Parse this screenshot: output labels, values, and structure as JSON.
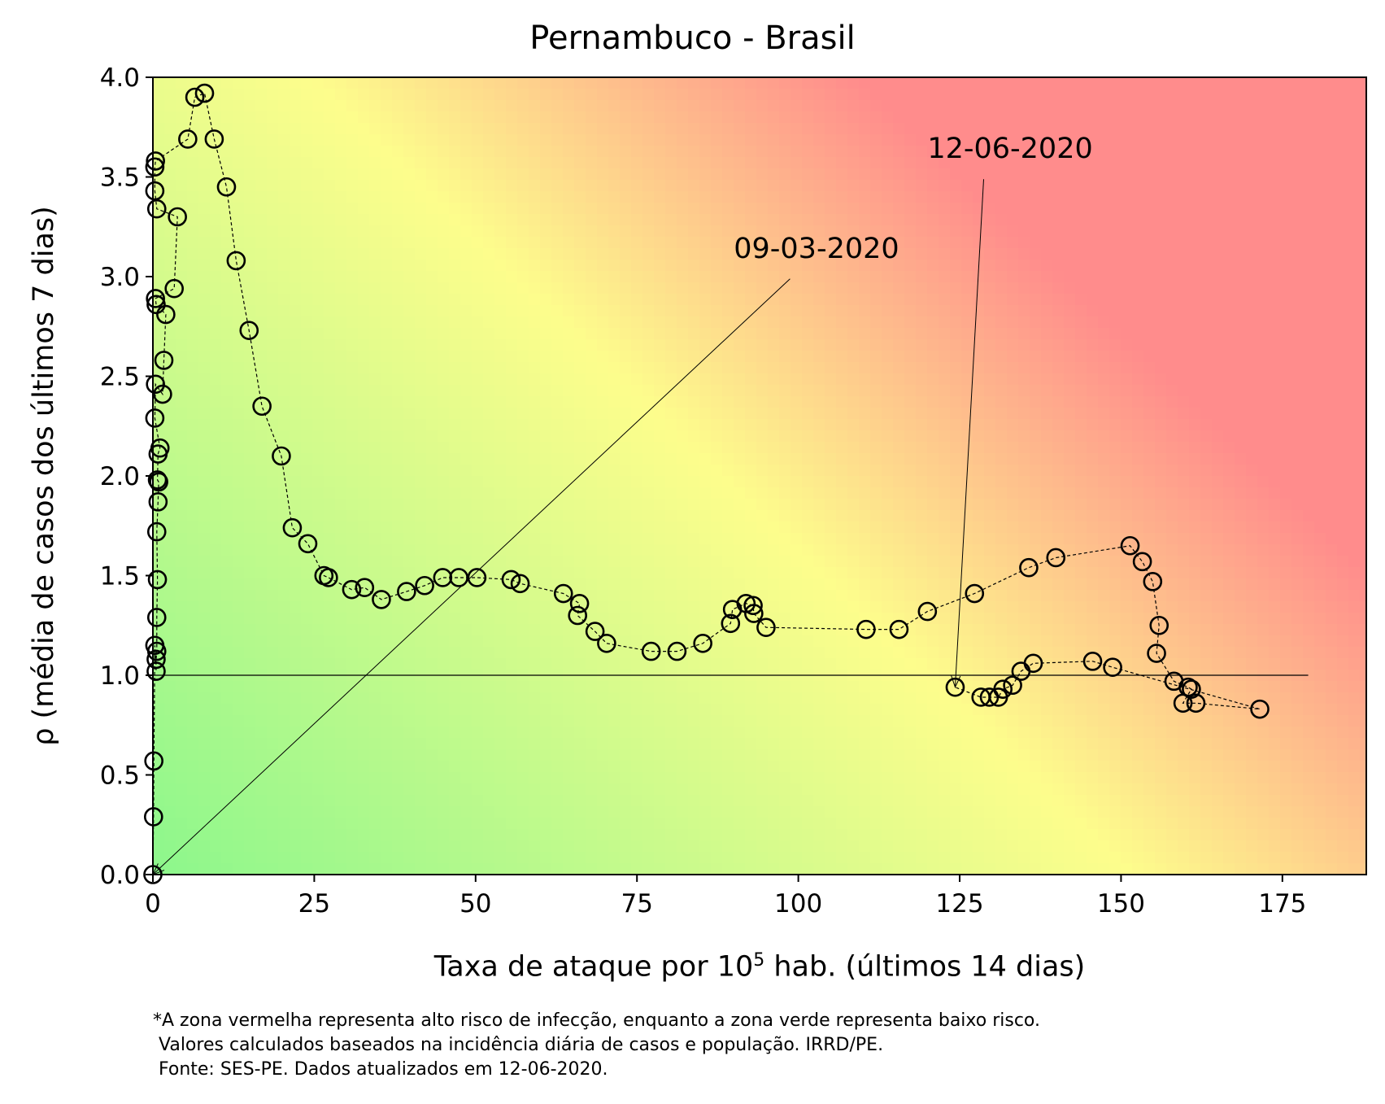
{
  "chart_data": {
    "type": "scatter",
    "title": "Pernambuco - Brasil",
    "xlabel": {
      "prefix": "Taxa de ataque por 10",
      "superscript": "5",
      "suffix": " hab. (últimos 14 dias)"
    },
    "ylabel": "ρ (média de casos dos últimos 7 dias)",
    "xlim": [
      0,
      188
    ],
    "ylim": [
      0,
      4.0
    ],
    "xticks": [
      0,
      25,
      50,
      75,
      100,
      125,
      150,
      175
    ],
    "yticks": [
      0.0,
      0.5,
      1.0,
      1.5,
      2.0,
      2.5,
      3.0,
      3.5,
      4.0
    ],
    "reference_line": {
      "y": 1.0,
      "x_from": 0,
      "x_to": 179
    },
    "background": "risk gradient: green (low risk, bottom-left) to yellow to red (high risk, top-right)",
    "colors": {
      "green": "#8cf78c",
      "yellow": "#fdfd8c",
      "red": "#ff8c8c",
      "marker_edge": "#000000"
    },
    "series": [
      {
        "marker": "open-circle",
        "line": "dashed",
        "points": [
          [
            0.0,
            0.0
          ],
          [
            0.1,
            0.29
          ],
          [
            0.15,
            0.57
          ],
          [
            0.3,
            1.15
          ],
          [
            0.5,
            1.02
          ],
          [
            0.5,
            1.08
          ],
          [
            0.6,
            1.12
          ],
          [
            0.6,
            1.29
          ],
          [
            0.7,
            1.48
          ],
          [
            0.6,
            1.72
          ],
          [
            0.8,
            1.87
          ],
          [
            0.9,
            1.97
          ],
          [
            0.7,
            1.98
          ],
          [
            0.8,
            2.11
          ],
          [
            1.1,
            2.14
          ],
          [
            0.3,
            2.29
          ],
          [
            0.4,
            2.46
          ],
          [
            1.5,
            2.41
          ],
          [
            1.7,
            2.58
          ],
          [
            2.0,
            2.81
          ],
          [
            0.5,
            2.86
          ],
          [
            0.4,
            2.89
          ],
          [
            3.3,
            2.94
          ],
          [
            3.8,
            3.3
          ],
          [
            0.6,
            3.34
          ],
          [
            0.3,
            3.43
          ],
          [
            0.3,
            3.55
          ],
          [
            0.4,
            3.58
          ],
          [
            5.4,
            3.69
          ],
          [
            6.5,
            3.9
          ],
          [
            8.0,
            3.92
          ],
          [
            9.5,
            3.69
          ],
          [
            11.4,
            3.45
          ],
          [
            12.9,
            3.08
          ],
          [
            14.9,
            2.73
          ],
          [
            16.9,
            2.35
          ],
          [
            19.9,
            2.1
          ],
          [
            21.6,
            1.74
          ],
          [
            24.0,
            1.66
          ],
          [
            26.5,
            1.5
          ],
          [
            27.2,
            1.49
          ],
          [
            30.8,
            1.43
          ],
          [
            32.8,
            1.44
          ],
          [
            35.4,
            1.38
          ],
          [
            39.3,
            1.42
          ],
          [
            42.1,
            1.45
          ],
          [
            44.9,
            1.49
          ],
          [
            47.4,
            1.49
          ],
          [
            50.2,
            1.49
          ],
          [
            55.5,
            1.48
          ],
          [
            56.9,
            1.46
          ],
          [
            63.6,
            1.41
          ],
          [
            66.1,
            1.36
          ],
          [
            65.8,
            1.3
          ],
          [
            68.5,
            1.22
          ],
          [
            70.3,
            1.16
          ],
          [
            77.2,
            1.12
          ],
          [
            81.2,
            1.12
          ],
          [
            85.2,
            1.16
          ],
          [
            89.5,
            1.26
          ],
          [
            89.8,
            1.33
          ],
          [
            91.9,
            1.36
          ],
          [
            93.0,
            1.35
          ],
          [
            93.1,
            1.31
          ],
          [
            95.0,
            1.24
          ],
          [
            110.5,
            1.23
          ],
          [
            115.6,
            1.23
          ],
          [
            120.0,
            1.32
          ],
          [
            127.3,
            1.41
          ],
          [
            135.7,
            1.54
          ],
          [
            139.9,
            1.59
          ],
          [
            151.4,
            1.65
          ],
          [
            153.3,
            1.57
          ],
          [
            154.9,
            1.47
          ],
          [
            155.9,
            1.25
          ],
          [
            155.5,
            1.11
          ],
          [
            158.2,
            0.97
          ],
          [
            160.4,
            0.94
          ],
          [
            160.9,
            0.93
          ],
          [
            159.6,
            0.86
          ],
          [
            161.6,
            0.86
          ],
          [
            171.5,
            0.83
          ],
          [
            148.7,
            1.04
          ],
          [
            145.6,
            1.07
          ],
          [
            136.4,
            1.06
          ],
          [
            134.5,
            1.02
          ],
          [
            133.2,
            0.95
          ],
          [
            131.7,
            0.93
          ],
          [
            131.0,
            0.89
          ],
          [
            129.6,
            0.89
          ],
          [
            128.3,
            0.89
          ],
          [
            124.3,
            0.94
          ]
        ]
      }
    ],
    "annotations": [
      {
        "text": "09-03-2020",
        "point": [
          0.0,
          0.0
        ],
        "text_x": 90,
        "text_y": 3.05
      },
      {
        "text": "12-06-2020",
        "point": [
          124.3,
          0.94
        ],
        "text_x": 120,
        "text_y": 3.55
      }
    ]
  },
  "footnote": [
    "*A zona vermelha representa alto risco de infecção, enquanto a zona verde representa baixo risco.",
    " Valores calculados baseados na incidência diária de casos e população. IRRD/PE.",
    " Fonte: SES-PE. Dados atualizados em 12-06-2020."
  ]
}
